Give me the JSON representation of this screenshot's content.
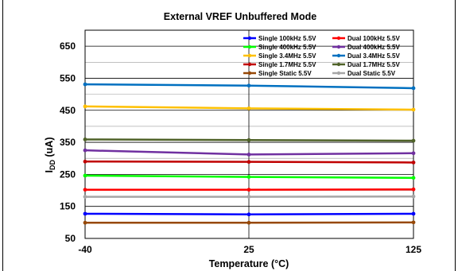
{
  "chart_data": {
    "type": "line",
    "title": "External VREF Unbuffered Mode",
    "xlabel": "Temperature (°C)",
    "ylabel_main": "I",
    "ylabel_sub": "DD",
    "ylabel_suffix": " (uA)",
    "x": [
      -40,
      25,
      125
    ],
    "x_ticks": [
      "-40",
      "25",
      "125"
    ],
    "ylim": [
      50,
      700
    ],
    "y_ticks": [
      50,
      150,
      250,
      350,
      450,
      550,
      650
    ],
    "y_tick_labels": [
      "50",
      "150",
      "250",
      "350",
      "450",
      "550",
      "650"
    ],
    "grid": true,
    "legend_position": "top-right",
    "series": [
      {
        "name": "Single 100kHz 5.5V",
        "color": "#0000ff",
        "values": [
          127,
          125,
          127
        ]
      },
      {
        "name": "Dual 100kHz 5.5V",
        "color": "#ff0000",
        "values": [
          202,
          202,
          203
        ]
      },
      {
        "name": "Single 400kHz 5.5V",
        "color": "#00ff00",
        "values": [
          246,
          242,
          239
        ]
      },
      {
        "name": "Dual 400kHz 5.5V",
        "color": "#7030a0",
        "values": [
          325,
          312,
          316
        ]
      },
      {
        "name": "Single 3.4MHz 5.5V",
        "color": "#ffc000",
        "values": [
          462,
          456,
          452
        ]
      },
      {
        "name": "Dual 3.4MHz 5.5V",
        "color": "#0070c0",
        "values": [
          531,
          527,
          519
        ]
      },
      {
        "name": "Single 1.7MHz 5.5V",
        "color": "#c00000",
        "values": [
          290,
          289,
          287
        ]
      },
      {
        "name": "Dual 1.7MHz 5.5V",
        "color": "#4f6228",
        "values": [
          359,
          357,
          355
        ]
      },
      {
        "name": "Single Static 5.5V",
        "color": "#974806",
        "values": [
          99,
          99,
          100
        ]
      },
      {
        "name": "Dual Static 5.5V",
        "color": "#a6a6a6",
        "values": [
          180,
          180,
          181
        ]
      }
    ]
  }
}
